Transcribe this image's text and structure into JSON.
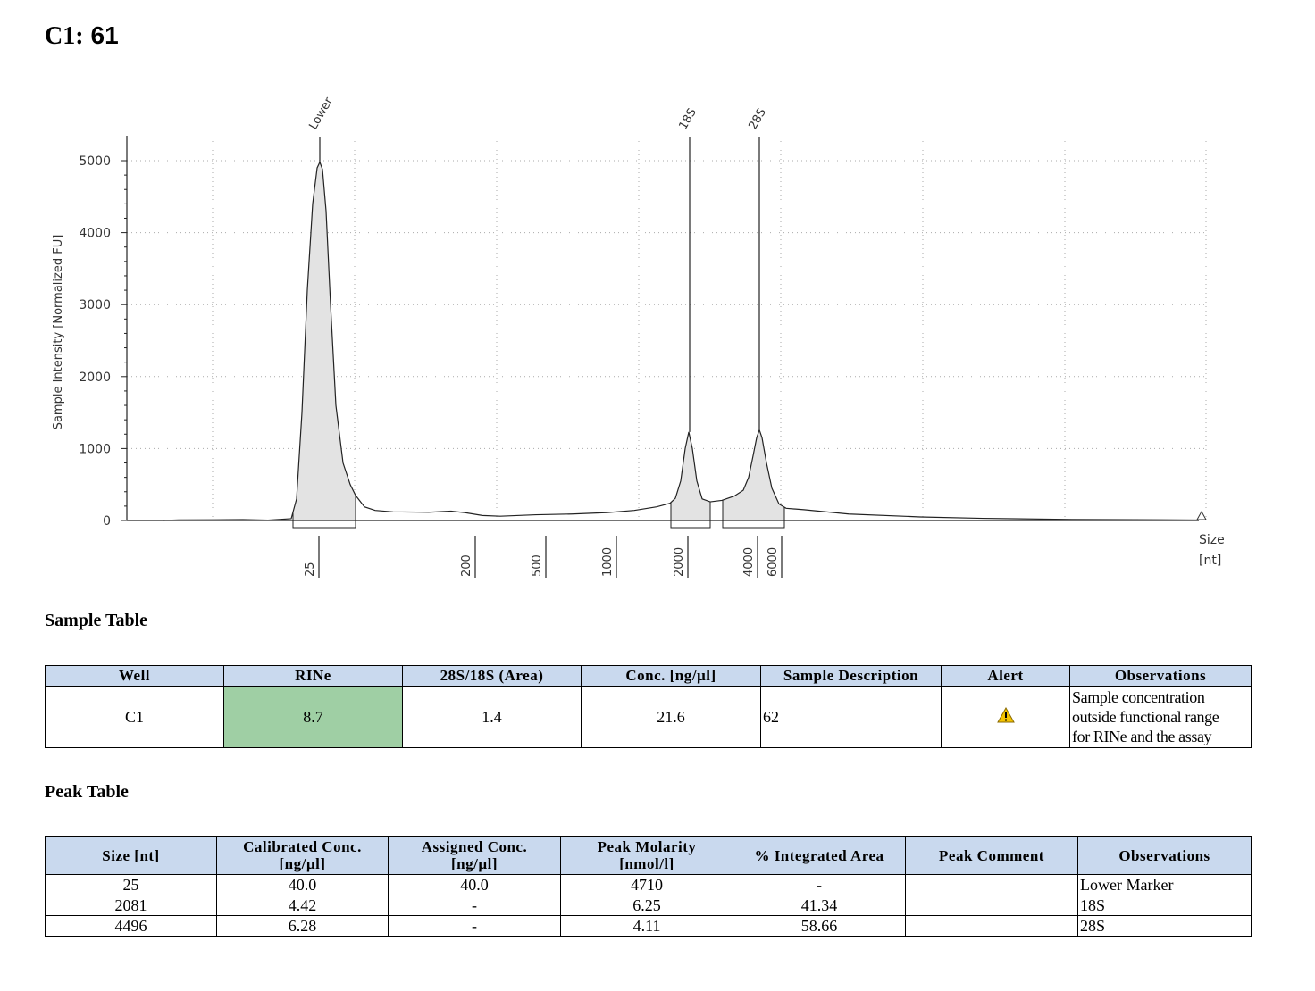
{
  "header": {
    "well_label": "C1:",
    "sample_number": "61"
  },
  "chart_data": {
    "type": "area",
    "ylabel": "Sample Intensity [Normalized FU]",
    "xlabel_line1": "Size",
    "xlabel_line2": "[nt]",
    "y_ticks": [
      0,
      1000,
      2000,
      3000,
      4000,
      5000
    ],
    "ylim": [
      0,
      5000
    ],
    "x_ticks": [
      "25",
      "200",
      "500",
      "1000",
      "2000",
      "4000",
      "6000"
    ],
    "peak_labels": [
      "Lower",
      "18S",
      "28S"
    ],
    "peaks": [
      {
        "label": "Lower",
        "size_nt": 25,
        "intensity": 4980
      },
      {
        "label": "18S",
        "size_nt": 2081,
        "intensity": 1230
      },
      {
        "label": "28S",
        "size_nt": 4496,
        "intensity": 1260
      }
    ],
    "grid": true
  },
  "sample_table": {
    "title": "Sample Table",
    "headers": [
      "Well",
      "RINe",
      "28S/18S (Area)",
      "Conc. [ng/µl]",
      "Sample Description",
      "Alert",
      "Observations"
    ],
    "row": {
      "well": "C1",
      "rine": "8.7",
      "ratio": "1.4",
      "conc": "21.6",
      "description": "62",
      "observations": [
        "Sample concentration",
        "outside functional range",
        "for RINe and the assay"
      ]
    }
  },
  "peak_table": {
    "title": "Peak Table",
    "headers": [
      [
        "Size [nt]"
      ],
      [
        "Calibrated Conc.",
        "[ng/µl]"
      ],
      [
        "Assigned Conc.",
        "[ng/µl]"
      ],
      [
        "Peak Molarity",
        "[nmol/l]"
      ],
      [
        "% Integrated Area"
      ],
      [
        "Peak Comment"
      ],
      [
        "Observations"
      ]
    ],
    "rows": [
      [
        "25",
        "40.0",
        "40.0",
        "4710",
        "-",
        "",
        "Lower Marker"
      ],
      [
        "2081",
        "4.42",
        "-",
        "6.25",
        "41.34",
        "",
        "18S"
      ],
      [
        "4496",
        "6.28",
        "-",
        "4.11",
        "58.66",
        "",
        "28S"
      ]
    ]
  }
}
